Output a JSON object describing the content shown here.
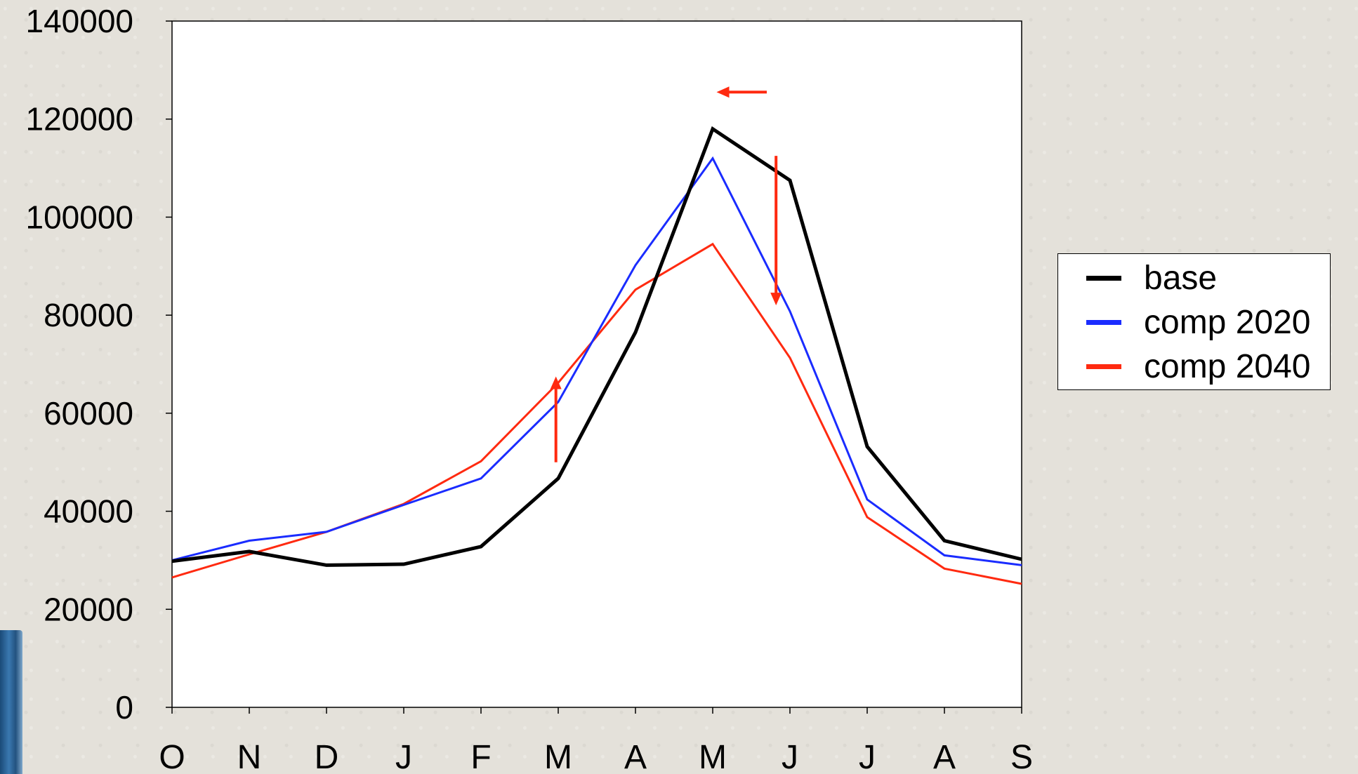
{
  "chart_data": {
    "type": "line",
    "categories": [
      "O",
      "N",
      "D",
      "J",
      "F",
      "M",
      "A",
      "M",
      "J",
      "J",
      "A",
      "S"
    ],
    "ylim": [
      0,
      140000
    ],
    "yticks": [
      0,
      20000,
      40000,
      60000,
      80000,
      100000,
      120000,
      140000
    ],
    "ytick_labels": [
      "0",
      "20000",
      "40000",
      "60000",
      "80000",
      "100000",
      "120000",
      "140000"
    ],
    "series": [
      {
        "name": "base",
        "color": "#000000",
        "values": [
          29800,
          31800,
          29000,
          29200,
          32800,
          46700,
          76500,
          118000,
          107500,
          53200,
          34000,
          30200
        ]
      },
      {
        "name": "comp 2020",
        "color": "#1a2cff",
        "values": [
          30000,
          34000,
          35800,
          41300,
          46700,
          62300,
          90200,
          112000,
          80800,
          42400,
          31000,
          29000
        ]
      },
      {
        "name": "comp 2040",
        "color": "#ff2a10",
        "values": [
          26500,
          31200,
          35800,
          41500,
          50200,
          66200,
          85200,
          94500,
          71300,
          38800,
          28300,
          25200
        ]
      }
    ],
    "annotations": [
      {
        "type": "arrow",
        "color": "#ff2a10",
        "direction": "left",
        "x_from": 7.7,
        "x_to": 7.05,
        "y": 125500
      },
      {
        "type": "arrow",
        "color": "#ff2a10",
        "direction": "down",
        "x": 7.82,
        "y_from": 112500,
        "y_to": 82000
      },
      {
        "type": "arrow",
        "color": "#ff2a10",
        "direction": "up",
        "x": 4.97,
        "y_from": 50000,
        "y_to": 67500
      }
    ],
    "legend": {
      "placement": "right",
      "entries": [
        "base",
        "comp 2020",
        "comp 2040"
      ]
    },
    "grid": false
  }
}
